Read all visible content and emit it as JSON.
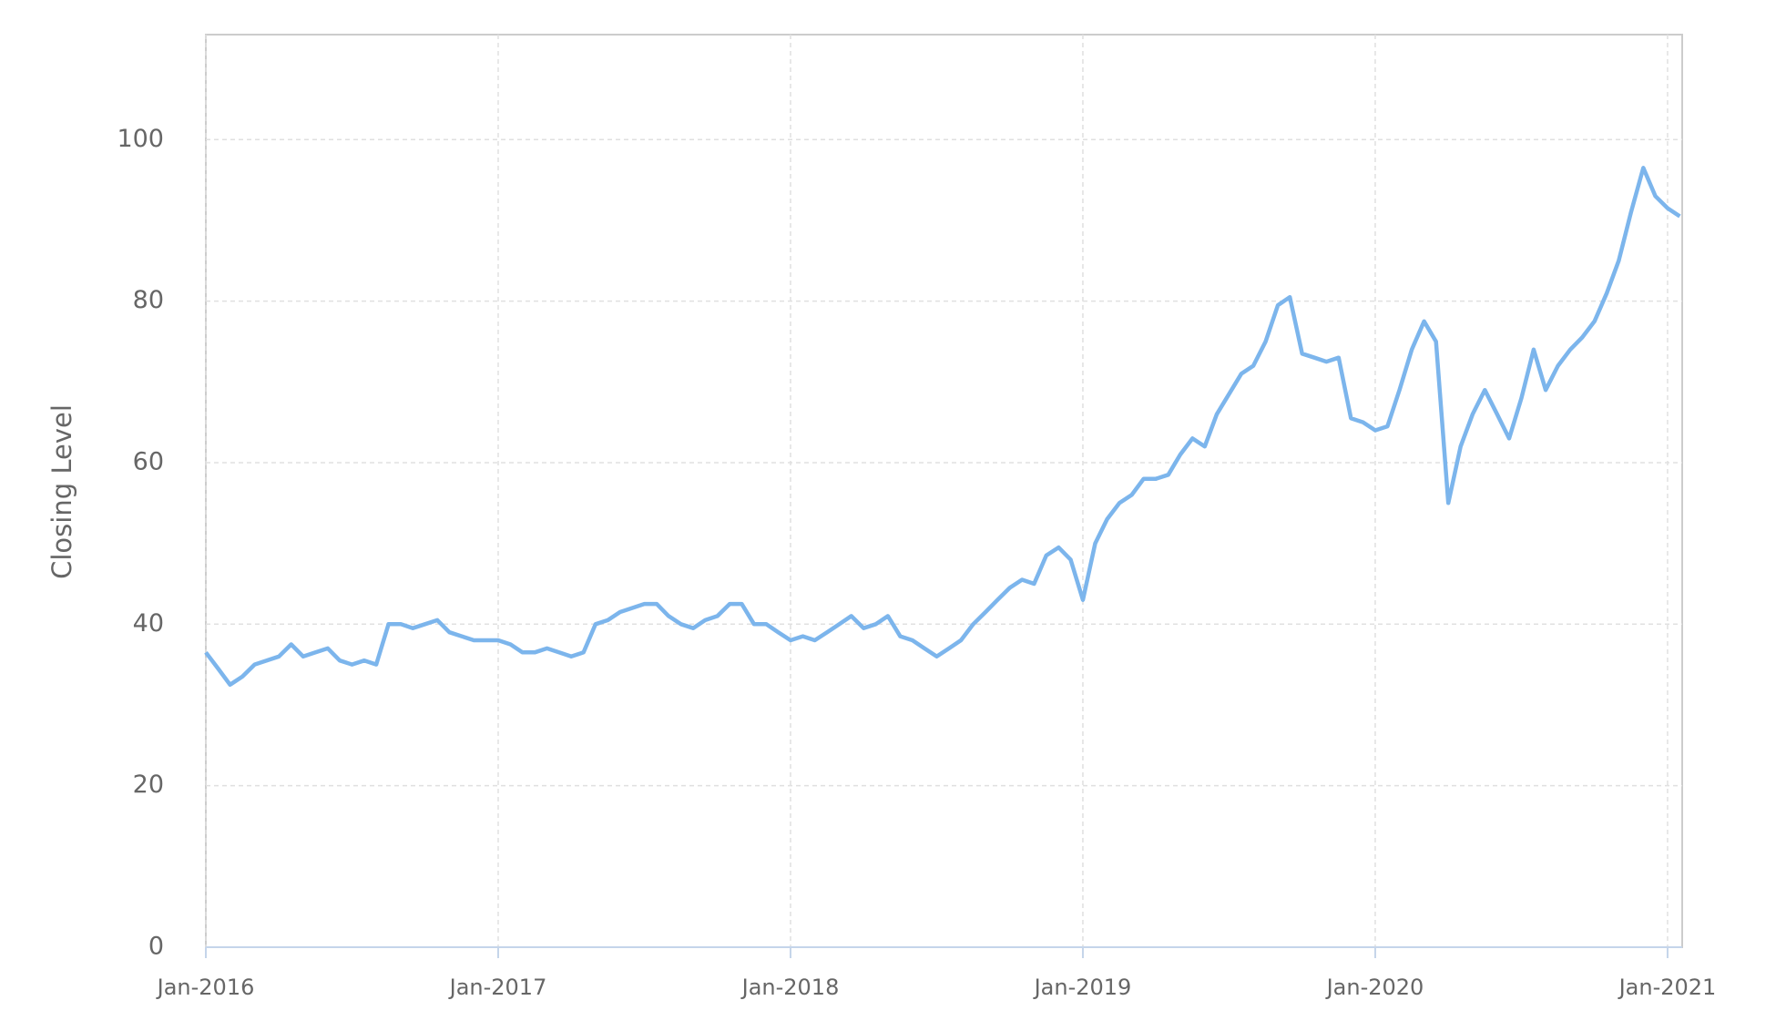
{
  "chart_data": {
    "type": "line",
    "y_label": "Closing Level",
    "color": "#7cb5ec",
    "grid": true,
    "x": [
      2016,
      2016.042,
      2016.083,
      2016.125,
      2016.167,
      2016.208,
      2016.25,
      2016.292,
      2016.333,
      2016.375,
      2016.417,
      2016.458,
      2016.5,
      2016.542,
      2016.583,
      2016.625,
      2016.667,
      2016.708,
      2016.75,
      2016.792,
      2016.833,
      2016.875,
      2016.917,
      2016.958,
      2017,
      2017.042,
      2017.083,
      2017.125,
      2017.167,
      2017.208,
      2017.25,
      2017.292,
      2017.333,
      2017.375,
      2017.417,
      2017.458,
      2017.5,
      2017.542,
      2017.583,
      2017.625,
      2017.667,
      2017.708,
      2017.75,
      2017.792,
      2017.833,
      2017.875,
      2017.917,
      2017.958,
      2018,
      2018.042,
      2018.083,
      2018.125,
      2018.167,
      2018.208,
      2018.25,
      2018.292,
      2018.333,
      2018.375,
      2018.417,
      2018.458,
      2018.5,
      2018.542,
      2018.583,
      2018.625,
      2018.667,
      2018.708,
      2018.75,
      2018.792,
      2018.833,
      2018.875,
      2018.917,
      2018.958,
      2019,
      2019.042,
      2019.083,
      2019.125,
      2019.167,
      2019.208,
      2019.25,
      2019.292,
      2019.333,
      2019.375,
      2019.417,
      2019.458,
      2019.5,
      2019.542,
      2019.583,
      2019.625,
      2019.667,
      2019.708,
      2019.75,
      2019.792,
      2019.833,
      2019.875,
      2019.917,
      2019.958,
      2020,
      2020.042,
      2020.083,
      2020.125,
      2020.167,
      2020.208,
      2020.25,
      2020.292,
      2020.333,
      2020.375,
      2020.417,
      2020.458,
      2020.5,
      2020.542,
      2020.583,
      2020.625,
      2020.667,
      2020.708,
      2020.75,
      2020.792,
      2020.833,
      2020.875,
      2020.917,
      2020.958,
      2021,
      2021.042
    ],
    "values": [
      36.5,
      34.5,
      32.5,
      33.5,
      35,
      35.5,
      36,
      37.5,
      36,
      36.5,
      37,
      35.5,
      35,
      35.5,
      35,
      40,
      40,
      39.5,
      40,
      40.5,
      39,
      38.5,
      38,
      38,
      38,
      37.5,
      36.5,
      36.5,
      37,
      36.5,
      36,
      36.5,
      40,
      40.5,
      41.5,
      42,
      42.5,
      42.5,
      41,
      40,
      39.5,
      40.5,
      41,
      42.5,
      42.5,
      40,
      40,
      39,
      38,
      38.5,
      38,
      39,
      40,
      41,
      39.5,
      40,
      41,
      38.5,
      38,
      37,
      36,
      37,
      38,
      40,
      41.5,
      43,
      44.5,
      45.5,
      45,
      48.5,
      49.5,
      48,
      43,
      50,
      53,
      55,
      56,
      58,
      58,
      58.5,
      61,
      63,
      62,
      66,
      68.5,
      71,
      72,
      75,
      79.5,
      80.5,
      73.5,
      73,
      72.5,
      73,
      65.5,
      65,
      64,
      64.5,
      69,
      74,
      77.5,
      75,
      55,
      62,
      66,
      69,
      66,
      63,
      68,
      74,
      69,
      72,
      74,
      75.5,
      77.5,
      81,
      85,
      91,
      96.5,
      93,
      91.5,
      90.5
    ],
    "xlim": [
      2016,
      2021.05
    ],
    "xticks": [
      {
        "value": 2016,
        "label": "Jan-2016"
      },
      {
        "value": 2017,
        "label": "Jan-2017"
      },
      {
        "value": 2018,
        "label": "Jan-2018"
      },
      {
        "value": 2019,
        "label": "Jan-2019"
      },
      {
        "value": 2020,
        "label": "Jan-2020"
      },
      {
        "value": 2021,
        "label": "Jan-2021"
      }
    ],
    "ylim": [
      0,
      113
    ],
    "yticks": [
      0,
      20,
      40,
      60,
      80,
      100
    ]
  }
}
